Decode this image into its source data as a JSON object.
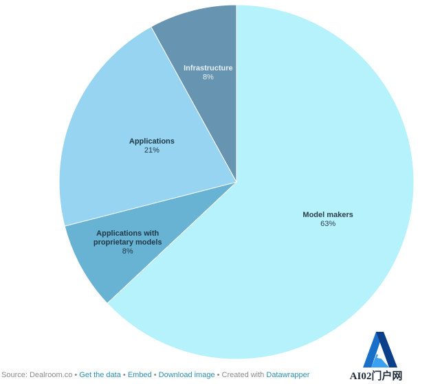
{
  "chart_data": {
    "type": "pie",
    "categories": [
      "Model makers",
      "Applications with proprietary models",
      "Applications",
      "Infrastructure"
    ],
    "values": [
      63,
      8,
      21,
      8
    ],
    "value_labels": [
      "63%",
      "8%",
      "21%",
      "8%"
    ],
    "label_lines": [
      [
        "Model makers"
      ],
      [
        "Applications with",
        "proprietary models"
      ],
      [
        "Applications"
      ],
      [
        "Infrastructure"
      ]
    ],
    "colors": [
      "#b6f2fb",
      "#68b2d4",
      "#96d4f1",
      "#6794b1"
    ],
    "label_colors": [
      "#2b3d4a",
      "#203744",
      "#203744",
      "#e6f0f6"
    ],
    "start_angle": "top",
    "direction": "clockwise",
    "title": "",
    "legend": "none"
  },
  "footer": {
    "source": "Source: Dealroom.co",
    "links": [
      "Get the data",
      "Embed",
      "Download image"
    ],
    "created": "Created with",
    "tool": "Datawrapper",
    "separator": " • "
  },
  "logo": {
    "text": "AI02门户网",
    "colors": [
      "#1a6fc9",
      "#0b3f8a",
      "#3aa0f0"
    ]
  }
}
